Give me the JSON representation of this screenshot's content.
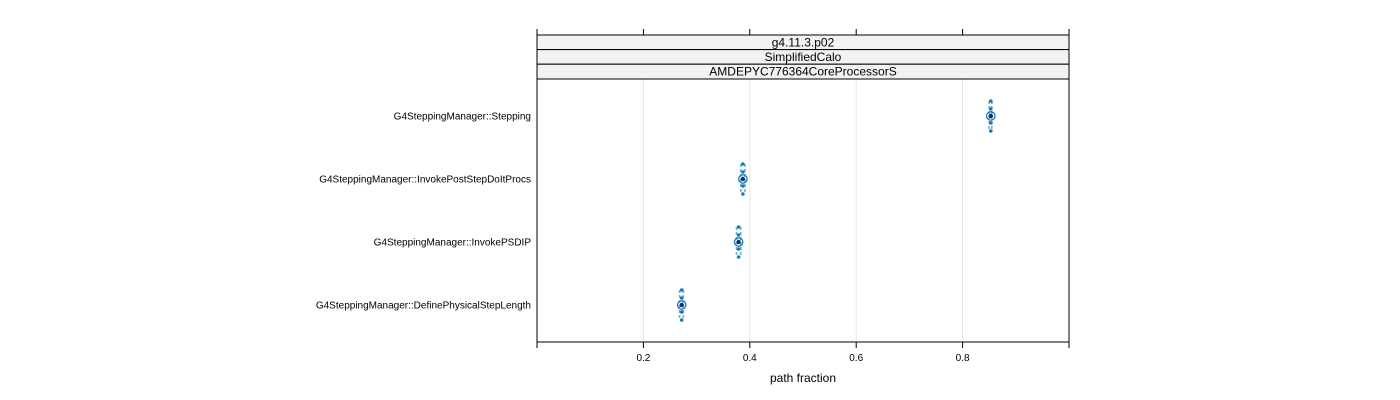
{
  "chart_data": {
    "type": "dotplot",
    "strips": [
      "g4.11.3.p02",
      "SimplifiedCalo",
      "AMDEPYC776364CoreProcessorS"
    ],
    "categories": [
      "G4SteppingManager::Stepping",
      "G4SteppingManager::InvokePostStepDoItProcs",
      "G4SteppingManager::InvokePSDIP",
      "G4SteppingManager::DefinePhysicalStepLength"
    ],
    "values": [
      0.853,
      0.387,
      0.379,
      0.272
    ],
    "low": [
      0.85,
      0.383,
      0.375,
      0.268
    ],
    "high": [
      0.855,
      0.391,
      0.383,
      0.275
    ],
    "xlabel": "path fraction",
    "xlim": [
      0.0,
      1.0
    ],
    "xticks": [
      0.2,
      0.4,
      0.6,
      0.8
    ],
    "grid": "vertical",
    "colors": {
      "point": "#1f78b4",
      "band": "#6baed6",
      "center": "#08306b",
      "strip_bg": "#f2f2f2",
      "grid": "#e6e6e6"
    }
  }
}
